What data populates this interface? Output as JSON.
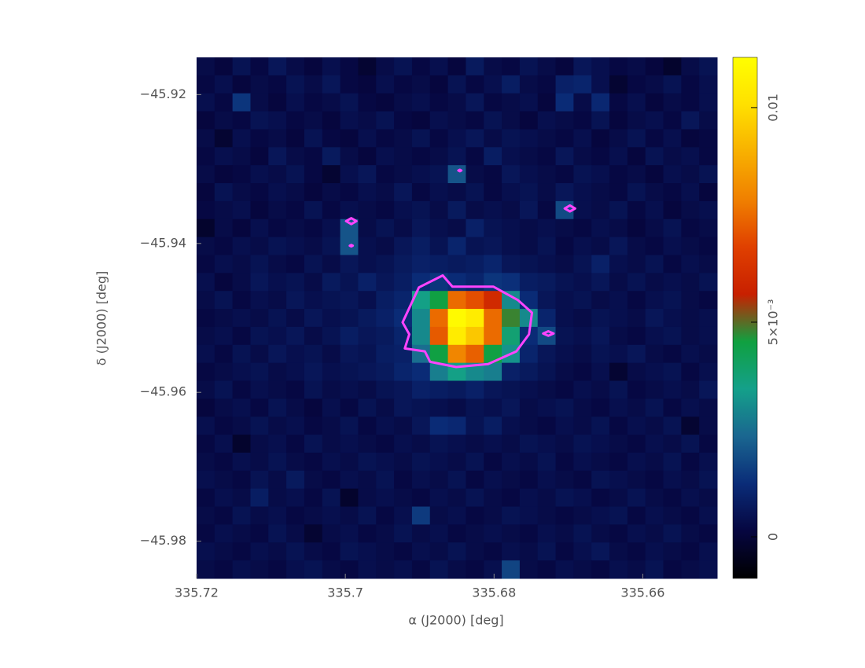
{
  "chart_data": {
    "type": "heatmap",
    "x_label": "α (J2000) [deg]",
    "y_label": "δ (J2000) [deg]",
    "xlim": [
      335.72,
      335.65
    ],
    "ylim": [
      -45.985,
      -45.915
    ],
    "xticks": [
      335.72,
      335.7,
      335.68,
      335.66
    ],
    "yticks": [
      {
        "value": -45.92,
        "label": "−45.92"
      },
      {
        "value": -45.94,
        "label": "−45.94"
      },
      {
        "value": -45.96,
        "label": "−45.96"
      },
      {
        "value": -45.98,
        "label": "−45.98"
      }
    ],
    "colorbar": {
      "lim": [
        -0.00097,
        0.01117
      ],
      "ticks": [
        0,
        {
          "value": 0.005,
          "label": "5×10⁻³"
        },
        0.01
      ]
    },
    "colormap": [
      "#000000",
      "#060640",
      "#0a2c78",
      "#1a6690",
      "#14a08a",
      "#10a040",
      "#c82000",
      "#e04000",
      "#f08000",
      "#f8b000",
      "#ffe000",
      "#ffff00"
    ],
    "contour_color": "#ff44ff",
    "contours": [
      {
        "x": [
          335.6901,
          335.6869,
          335.6856,
          335.6801,
          335.6768,
          335.6749,
          335.6753,
          335.677,
          335.6808,
          335.6851,
          335.6886,
          335.6893,
          335.692,
          335.6914,
          335.6923,
          335.6909
        ],
        "y": [
          -45.9459,
          -45.9443,
          -45.9458,
          -45.9458,
          -45.9476,
          -45.9493,
          -45.9522,
          -45.9545,
          -45.9562,
          -45.9566,
          -45.9559,
          -45.9545,
          -45.9541,
          -45.9522,
          -45.9506,
          -45.9476
        ]
      },
      {
        "x": [
          335.6999,
          335.6992,
          335.6985,
          335.6992
        ],
        "y": [
          -45.937,
          -45.9366,
          -45.937,
          -45.9374
        ]
      },
      {
        "x": [
          335.6705,
          335.6698,
          335.6691,
          335.6698
        ],
        "y": [
          -45.9353,
          -45.9349,
          -45.9353,
          -45.9357
        ]
      },
      {
        "x": [
          335.6734,
          335.6727,
          335.672,
          335.6727
        ],
        "y": [
          -45.9521,
          -45.9518,
          -45.9521,
          -45.9524
        ]
      },
      {
        "x": [
          335.6848,
          335.6846,
          335.6844,
          335.6846
        ],
        "y": [
          -45.9302,
          -45.9301,
          -45.9302,
          -45.9303
        ]
      },
      {
        "x": [
          335.6994,
          335.6992,
          335.699,
          335.6992
        ],
        "y": [
          -45.9403,
          -45.9402,
          -45.9403,
          -45.9404
        ]
      }
    ],
    "z": [
      [
        0.0003,
        0.0001,
        0.0005,
        0.0002,
        0.0006,
        0.0003,
        0.0001,
        0.0004,
        0.0002,
        -0.0001,
        0.0003,
        0.0005,
        0.0002,
        0.0004,
        0.0001,
        0.0007,
        0.0003,
        0.0002,
        0.0005,
        0.0003,
        0.0001,
        0.0006,
        0.0004,
        0.0002,
        0.0003,
        0.0001,
        -0.0002,
        0.0003,
        0.0005
      ],
      [
        0.0002,
        0.0004,
        0.0001,
        0.0003,
        0.0002,
        0.0005,
        0.0003,
        0.0006,
        0.0002,
        0.0001,
        0.0004,
        0.0002,
        0.0003,
        0.0001,
        0.0005,
        0.0002,
        0.0004,
        0.0008,
        0.0003,
        0.0002,
        0.0009,
        0.001,
        0.0004,
        -0.0001,
        0.0002,
        0.0003,
        0.0005,
        0.0002,
        0.0004
      ],
      [
        0.0004,
        0.0002,
        0.0014,
        0.0003,
        0.0001,
        0.0004,
        0.0002,
        0.0003,
        0.0005,
        0.0002,
        0.0001,
        0.0003,
        0.0004,
        0.0002,
        0.0003,
        0.0006,
        0.0002,
        0.0003,
        0.0004,
        0.0001,
        0.0012,
        0.0003,
        0.0011,
        0.0002,
        0.0004,
        0.0001,
        0.0003,
        0.0002,
        0.0004
      ],
      [
        0.0001,
        0.0003,
        0.0002,
        0.0005,
        0.0004,
        0.0002,
        0.0003,
        0.0001,
        0.0004,
        0.0003,
        0.0005,
        0.0002,
        0.0001,
        0.0004,
        0.0003,
        0.0002,
        0.0005,
        0.0003,
        0.0001,
        0.0004,
        0.0003,
        0.0002,
        0.0005,
        0.0001,
        0.0003,
        0.0004,
        0.0002,
        0.0006,
        0.0003
      ],
      [
        0.0003,
        -0.0001,
        0.0004,
        0.0002,
        0.0003,
        0.0001,
        0.0005,
        0.0002,
        0.0001,
        0.0004,
        0.0002,
        0.0003,
        0.0005,
        0.0002,
        0.0004,
        0.0006,
        0.0003,
        0.0005,
        0.0004,
        0.0003,
        0.0002,
        0.0004,
        0.0001,
        0.0003,
        0.0005,
        0.0002,
        0.0004,
        0.0001,
        0.0002
      ],
      [
        0.0002,
        0.0004,
        0.0003,
        0.0001,
        0.0006,
        0.0003,
        0.0002,
        0.0007,
        0.0003,
        0.0001,
        0.0004,
        0.0003,
        0.0002,
        0.0003,
        0.0005,
        0.0002,
        0.0008,
        0.0004,
        0.0003,
        0.0002,
        0.0006,
        0.0003,
        0.0002,
        0.0004,
        0.0001,
        0.0005,
        0.0003,
        0.0004,
        0.0002
      ],
      [
        0.0003,
        0.0001,
        0.0002,
        0.0004,
        0.0003,
        0.0005,
        0.0002,
        -0.0001,
        0.0004,
        0.0006,
        0.0002,
        0.0003,
        0.0004,
        0.0005,
        0.002,
        0.0003,
        0.0002,
        0.0006,
        0.0004,
        0.0003,
        0.0002,
        0.0005,
        0.0004,
        0.0002,
        0.0003,
        0.0001,
        0.0004,
        0.0003,
        0.0005
      ],
      [
        0.0001,
        0.0005,
        0.0003,
        0.0002,
        0.0004,
        0.0003,
        0.0001,
        0.0003,
        0.0002,
        0.0004,
        0.0003,
        0.0006,
        0.0002,
        0.0004,
        0.0003,
        0.0005,
        0.0002,
        0.0004,
        0.0005,
        0.0003,
        0.0006,
        0.0004,
        0.0003,
        0.0002,
        0.0005,
        0.0003,
        0.0002,
        0.0004,
        0.0001
      ],
      [
        0.0002,
        0.0003,
        0.0004,
        0.0001,
        0.0003,
        0.0002,
        0.0005,
        0.0002,
        0.0004,
        0.0003,
        0.0002,
        0.0004,
        0.0005,
        0.0003,
        0.0007,
        0.0003,
        0.0004,
        0.0003,
        0.0006,
        0.0002,
        0.0018,
        0.0004,
        0.0003,
        0.0005,
        0.0002,
        0.0004,
        0.0001,
        0.0003,
        0.0004
      ],
      [
        -0.0002,
        0.0003,
        0.0001,
        0.0004,
        0.0002,
        0.0003,
        0.0002,
        0.0004,
        0.002,
        0.0003,
        0.0005,
        0.0003,
        0.0006,
        0.0004,
        0.0003,
        0.0009,
        0.0005,
        0.0004,
        0.0003,
        0.0004,
        0.0003,
        0.0002,
        0.0004,
        0.0003,
        0.0001,
        0.0003,
        0.0005,
        0.0002,
        0.0003
      ],
      [
        0.0003,
        0.0002,
        0.0004,
        0.0003,
        0.0005,
        0.0004,
        0.0003,
        0.0005,
        0.002,
        0.0004,
        0.0003,
        0.0006,
        0.0008,
        0.0005,
        0.001,
        0.0005,
        0.0006,
        0.0004,
        0.0003,
        0.0005,
        0.0002,
        0.0004,
        0.0003,
        0.0006,
        0.0003,
        0.0002,
        0.0004,
        0.0003,
        0.0002
      ],
      [
        0.0002,
        0.0004,
        0.0003,
        0.0005,
        0.0003,
        0.0002,
        0.0005,
        0.0003,
        0.0006,
        0.0004,
        0.0005,
        0.0007,
        0.0009,
        0.0008,
        0.0007,
        0.0008,
        0.001,
        0.0006,
        0.0005,
        0.0004,
        0.0003,
        0.0005,
        0.0009,
        0.0004,
        0.0003,
        0.0005,
        0.0002,
        0.0004,
        0.0003
      ],
      [
        0.0004,
        0.0001,
        0.0003,
        0.0006,
        0.0004,
        0.0005,
        0.0003,
        0.0007,
        0.0005,
        0.0009,
        0.0006,
        0.0008,
        0.0012,
        0.0014,
        0.0012,
        0.001,
        0.0014,
        0.0013,
        0.0008,
        0.0007,
        0.0005,
        0.0004,
        0.0006,
        0.0003,
        0.0005,
        0.0003,
        0.0004,
        0.0003,
        0.0005
      ],
      [
        0.0003,
        0.0005,
        0.0002,
        0.0004,
        0.0003,
        0.0006,
        0.0004,
        0.0005,
        0.0006,
        0.0004,
        0.0008,
        0.001,
        0.0035,
        0.0045,
        0.0075,
        0.007,
        0.006,
        0.003,
        0.0012,
        0.0006,
        0.0004,
        0.0005,
        0.0003,
        0.0004,
        0.0002,
        0.0004,
        0.0005,
        0.0003,
        0.0002
      ],
      [
        0.0002,
        0.0003,
        0.0004,
        0.0003,
        0.0005,
        0.0003,
        0.0006,
        0.0004,
        0.0005,
        0.0007,
        0.0009,
        0.0012,
        0.003,
        0.0075,
        0.011,
        0.0105,
        0.0075,
        0.0048,
        0.003,
        0.001,
        0.0004,
        0.0003,
        0.0005,
        0.0004,
        0.0003,
        0.0006,
        0.0004,
        0.0003,
        0.0004
      ],
      [
        0.0003,
        0.0004,
        0.0002,
        0.0005,
        0.0004,
        0.0006,
        0.0003,
        0.0005,
        0.0008,
        0.0006,
        0.0007,
        0.001,
        0.003,
        0.0072,
        0.0105,
        0.0095,
        0.0075,
        0.0038,
        0.0012,
        0.0018,
        0.0005,
        0.0004,
        0.0006,
        0.0003,
        0.0002,
        0.0004,
        0.0005,
        0.0003,
        0.0004
      ],
      [
        0.0004,
        0.0002,
        0.0005,
        0.0003,
        0.0006,
        0.0004,
        0.0005,
        0.0003,
        0.0006,
        0.0005,
        0.0008,
        0.0009,
        0.0025,
        0.0045,
        0.008,
        0.0073,
        0.0045,
        0.0032,
        0.001,
        0.0006,
        0.0004,
        0.0003,
        0.0005,
        0.0004,
        0.0006,
        0.0003,
        0.0002,
        0.0004,
        0.0003
      ],
      [
        0.0002,
        0.0003,
        0.0004,
        0.0005,
        0.0003,
        0.0004,
        0.0006,
        0.0004,
        0.0005,
        0.0006,
        0.0007,
        0.001,
        0.0012,
        0.0028,
        0.0035,
        0.003,
        0.0028,
        0.0009,
        0.0007,
        0.0005,
        0.0003,
        0.0002,
        0.0004,
        -0.0001,
        0.0003,
        0.0004,
        0.0005,
        0.0002,
        0.0004
      ],
      [
        0.0003,
        0.0005,
        0.0002,
        0.0004,
        0.0003,
        0.0002,
        0.0005,
        0.0003,
        0.0004,
        0.0003,
        0.0005,
        0.0006,
        0.0009,
        0.0008,
        0.0007,
        0.0009,
        0.0006,
        0.0005,
        0.0004,
        0.0003,
        0.0002,
        0.0004,
        0.0003,
        0.0005,
        0.0002,
        0.0003,
        0.0004,
        0.0003,
        0.0006
      ],
      [
        0.0001,
        0.0003,
        0.0004,
        0.0002,
        0.0005,
        0.0003,
        0.0001,
        0.0004,
        0.0002,
        0.0005,
        0.0003,
        0.0006,
        0.0005,
        0.0004,
        0.0003,
        0.0005,
        0.0004,
        0.0006,
        0.0003,
        0.0004,
        0.0005,
        0.0003,
        0.0002,
        0.0004,
        0.0003,
        0.0005,
        0.0002,
        0.0004,
        0.0003
      ],
      [
        0.0004,
        0.0002,
        0.0003,
        0.0005,
        0.0003,
        0.0004,
        0.0002,
        0.0003,
        0.0005,
        0.0002,
        0.0004,
        0.0003,
        0.0006,
        0.0012,
        0.0011,
        0.0005,
        0.0008,
        0.0004,
        0.0003,
        0.0002,
        0.0004,
        0.0003,
        0.0005,
        0.0002,
        0.0004,
        0.0003,
        0.0005,
        -0.0001,
        0.0003
      ],
      [
        0.0002,
        0.0004,
        -0.0002,
        0.0003,
        0.0004,
        0.0002,
        0.0005,
        0.0003,
        0.0004,
        0.0003,
        0.0002,
        0.0004,
        0.0003,
        0.0005,
        0.0004,
        0.0003,
        0.0004,
        0.0003,
        0.0005,
        0.0004,
        0.0003,
        0.0005,
        0.0004,
        0.0003,
        0.0002,
        0.0004,
        0.0003,
        0.0005,
        0.0002
      ],
      [
        0.0003,
        0.0002,
        0.0004,
        0.0003,
        0.0005,
        0.0003,
        0.0002,
        0.0004,
        0.0003,
        0.0005,
        0.0004,
        0.0003,
        0.0005,
        0.0004,
        0.0003,
        0.0005,
        0.0002,
        0.0004,
        0.0003,
        0.0005,
        0.0002,
        0.0004,
        0.0003,
        0.0002,
        0.0004,
        0.0003,
        0.0005,
        0.0002,
        0.0004
      ],
      [
        0.0004,
        0.0003,
        0.0002,
        0.0005,
        0.0003,
        0.0007,
        0.0003,
        0.0002,
        0.0004,
        0.0003,
        0.0005,
        0.0002,
        0.0004,
        0.0003,
        0.0005,
        0.0002,
        0.0004,
        0.0003,
        0.0002,
        0.0004,
        0.0003,
        0.0002,
        0.0005,
        0.0004,
        0.0003,
        0.0002,
        0.0004,
        0.0003,
        0.0005
      ],
      [
        0.0002,
        0.0004,
        0.0003,
        0.0008,
        0.0003,
        0.0004,
        0.0002,
        0.0005,
        -0.0002,
        0.0003,
        0.0004,
        0.0003,
        0.0002,
        0.0004,
        0.0003,
        0.0005,
        0.0003,
        0.0002,
        0.0004,
        0.0003,
        0.0005,
        0.0004,
        0.0002,
        0.0003,
        0.0005,
        0.0003,
        0.0002,
        0.0004,
        0.0003
      ],
      [
        0.0003,
        0.0002,
        0.0005,
        0.0003,
        0.0004,
        0.0002,
        0.0003,
        0.0004,
        0.0003,
        0.0005,
        0.0002,
        0.0004,
        0.0015,
        0.0003,
        0.0004,
        0.0002,
        0.0003,
        0.0005,
        0.0004,
        0.0003,
        0.0002,
        0.0003,
        0.0004,
        0.0005,
        0.0002,
        0.0004,
        0.0003,
        0.0002,
        0.0004
      ],
      [
        0.0002,
        0.0004,
        0.0003,
        0.0002,
        0.0005,
        0.0003,
        -0.0001,
        0.0003,
        0.0004,
        0.0002,
        0.0003,
        0.0005,
        0.0003,
        0.0004,
        0.0002,
        0.0003,
        0.0004,
        0.0003,
        0.0002,
        0.0004,
        0.0003,
        0.0005,
        0.0003,
        0.0002,
        0.0004,
        0.0003,
        0.0005,
        0.0003,
        0.0002
      ],
      [
        0.0004,
        0.0003,
        0.0002,
        0.0004,
        0.0003,
        0.0005,
        0.0003,
        0.0002,
        0.0005,
        0.0004,
        0.0003,
        0.0002,
        0.0004,
        0.0003,
        0.0005,
        0.0003,
        0.0002,
        0.0004,
        0.0003,
        0.0005,
        0.0002,
        0.0004,
        0.0006,
        0.0003,
        0.0002,
        0.0004,
        0.0003,
        0.0002,
        0.0004
      ],
      [
        0.0003,
        0.0002,
        0.0004,
        0.0003,
        0.0002,
        0.0004,
        0.0005,
        0.0003,
        0.0002,
        0.0004,
        0.0003,
        0.0004,
        0.0002,
        0.0005,
        0.0003,
        0.0002,
        0.0004,
        0.0017,
        0.0003,
        0.0002,
        0.0004,
        0.0003,
        0.0002,
        0.0004,
        0.0003,
        0.0005,
        0.0002,
        0.0003,
        0.0004
      ]
    ]
  }
}
